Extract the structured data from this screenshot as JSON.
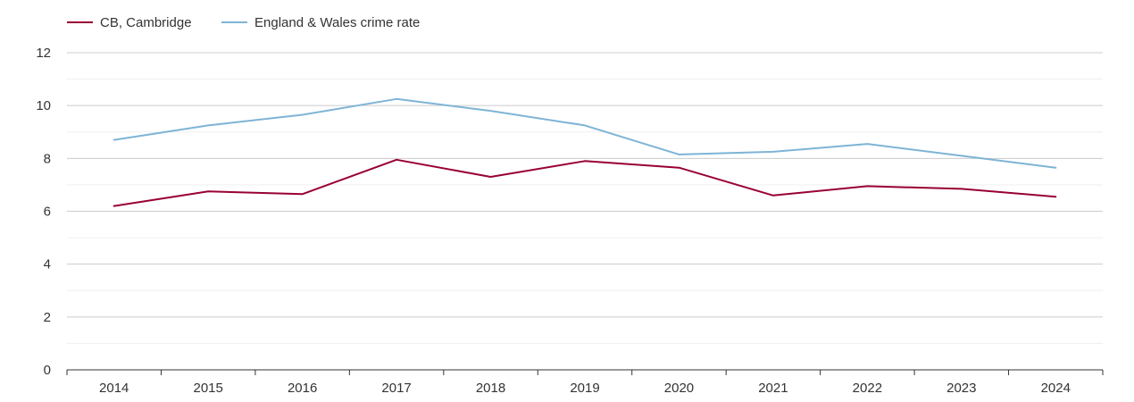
{
  "chart_data": {
    "type": "line",
    "title": "",
    "xlabel": "",
    "ylabel": "",
    "categories": [
      "2014",
      "2015",
      "2016",
      "2017",
      "2018",
      "2019",
      "2020",
      "2021",
      "2022",
      "2023",
      "2024"
    ],
    "ylim": [
      0,
      12
    ],
    "yticks": [
      "0",
      "2",
      "4",
      "6",
      "8",
      "10",
      "12"
    ],
    "grid": true,
    "legend_position": "top-left",
    "series": [
      {
        "name": "CB, Cambridge",
        "color": "#990033",
        "values": [
          6.2,
          6.75,
          6.65,
          7.95,
          7.3,
          7.9,
          7.65,
          6.6,
          6.95,
          6.85,
          6.55
        ]
      },
      {
        "name": "England & Wales crime rate",
        "color": "#7eb4d6",
        "values": [
          8.7,
          9.25,
          9.65,
          10.25,
          9.8,
          9.25,
          8.15,
          8.25,
          8.55,
          8.1,
          7.65
        ]
      }
    ]
  }
}
